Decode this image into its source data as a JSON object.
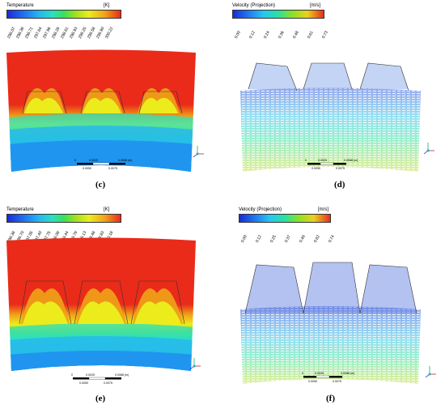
{
  "panels": {
    "c": {
      "title": "Temperature",
      "unit": "[K]",
      "ticks": [
        "298.07",
        "298.39",
        "298.71",
        "297.64",
        "297.96",
        "298.28",
        "298.61",
        "298.93",
        "299.25",
        "299.58",
        "299.90",
        "300.22"
      ],
      "caption": "(c)",
      "scale_labels": [
        "0",
        "0.0050",
        "0.0025",
        "0.0100",
        "0.0075",
        "0.0088 (m)"
      ]
    },
    "d": {
      "title": "Velocity (Projection)",
      "unit": "[m/s]",
      "ticks": [
        "0.00",
        "0.12",
        "0.24",
        "0.36",
        "0.48",
        "0.61",
        "0.73"
      ],
      "caption": "(d)",
      "scale_labels": [
        "0",
        "0.0050",
        "0.0025",
        "0.0100",
        "0.0075",
        "0.0088 (m)"
      ]
    },
    "e": {
      "title": "Temperature",
      "unit": "[K]",
      "ticks": [
        "296.38",
        "296.70",
        "297.05",
        "297.40",
        "297.75",
        "298.09",
        "298.44",
        "298.79",
        "299.13",
        "299.48",
        "299.83",
        "300.18"
      ],
      "caption": "(e)",
      "scale_labels": [
        "0",
        "0.0050",
        "0.0025",
        "0.0100",
        "0.0075",
        "0.0088 (m)"
      ]
    },
    "f": {
      "title": "Velocity (Projection)",
      "unit": "[m/s]",
      "ticks": [
        "0.00",
        "0.12",
        "0.25",
        "0.37",
        "0.49",
        "0.62",
        "0.74"
      ],
      "caption": "(f)",
      "scale_labels": [
        "0",
        "0.0050",
        "0.0025",
        "0.0100",
        "0.0075",
        "0.0088 (m)"
      ]
    }
  },
  "colors": {
    "hot": "#ea2b1a",
    "cold": "#1e88f0",
    "outline": "#333333"
  }
}
